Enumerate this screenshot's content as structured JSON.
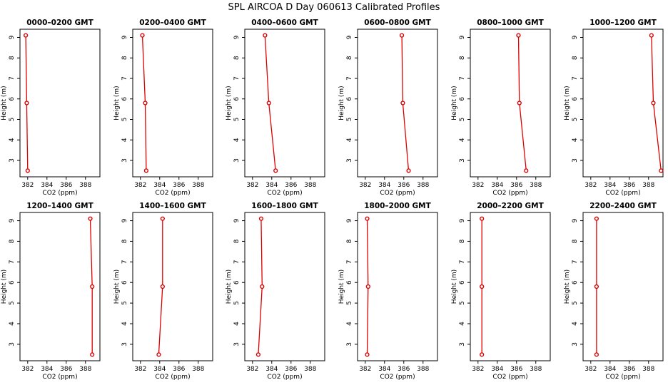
{
  "figure": {
    "title": "SPL AIRCOA D  Day 060613  Calibrated Profiles"
  },
  "chart_data": {
    "type": "line",
    "xlabel": "CO2 (ppm)",
    "ylabel": "Height (m)",
    "xlim": [
      381.2,
      389.5
    ],
    "ylim": [
      2.2,
      9.4
    ],
    "xticks": [
      382,
      384,
      386,
      388
    ],
    "yticks": [
      3,
      4,
      5,
      6,
      7,
      8,
      9
    ],
    "grid": false,
    "legend": "none",
    "series_color": "#dd0000",
    "heights": [
      9.1,
      5.8,
      2.5
    ],
    "panels": [
      {
        "title": "0000–0200 GMT",
        "x": [
          381.8,
          381.9,
          382.0
        ]
      },
      {
        "title": "0200–0400 GMT",
        "x": [
          382.2,
          382.5,
          382.6
        ]
      },
      {
        "title": "0400–0600 GMT",
        "x": [
          383.3,
          383.7,
          384.4
        ]
      },
      {
        "title": "0600–0800 GMT",
        "x": [
          385.8,
          385.9,
          386.5
        ]
      },
      {
        "title": "0800–1000 GMT",
        "x": [
          386.2,
          386.3,
          387.0
        ]
      },
      {
        "title": "1000–1200 GMT",
        "x": [
          388.3,
          388.5,
          389.3
        ]
      },
      {
        "title": "1200–1400 GMT",
        "x": [
          388.5,
          388.7,
          388.7
        ]
      },
      {
        "title": "1400–1600 GMT",
        "x": [
          384.3,
          384.3,
          383.9
        ]
      },
      {
        "title": "1600–1800 GMT",
        "x": [
          382.9,
          383.0,
          382.6
        ]
      },
      {
        "title": "1800–2000 GMT",
        "x": [
          382.2,
          382.3,
          382.2
        ]
      },
      {
        "title": "2000–2200 GMT",
        "x": [
          382.4,
          382.4,
          382.4
        ]
      },
      {
        "title": "2200–2400 GMT",
        "x": [
          382.6,
          382.6,
          382.6
        ]
      }
    ]
  }
}
